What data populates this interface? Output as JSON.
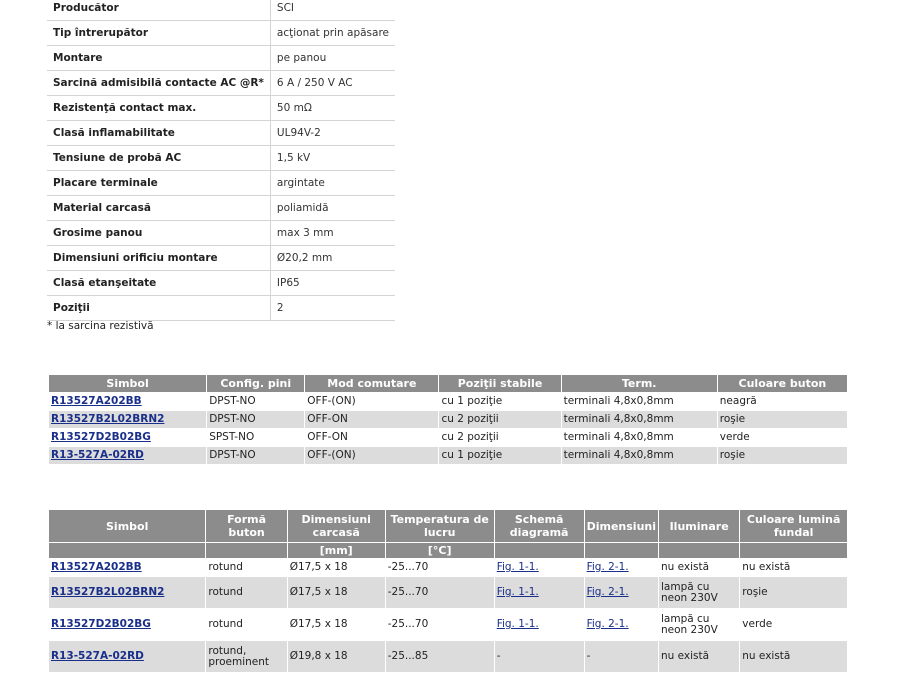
{
  "specs": [
    {
      "label": "Producător",
      "value": "SCI"
    },
    {
      "label": "Tip întrerupător",
      "value": "acţionat prin apăsare"
    },
    {
      "label": "Montare",
      "value": "pe panou"
    },
    {
      "label": "Sarcină admisibilă contacte AC @R*",
      "value": "6 A / 250 V AC"
    },
    {
      "label": "Rezistenţă contact max.",
      "value": "50 mΩ"
    },
    {
      "label": "Clasă inflamabilitate",
      "value": "UL94V-2"
    },
    {
      "label": "Tensiune de probă AC",
      "value": "1,5 kV"
    },
    {
      "label": "Placare terminale",
      "value": "argintate"
    },
    {
      "label": "Material carcasă",
      "value": "poliamidă"
    },
    {
      "label": "Grosime panou",
      "value": "max 3 mm"
    },
    {
      "label": "Dimensiuni orificiu montare",
      "value": "Ø20,2 mm"
    },
    {
      "label": "Clasă etanşeitate",
      "value": "IP65"
    },
    {
      "label": "Poziţii",
      "value": "2"
    }
  ],
  "footnote": "* la sarcina rezistivă",
  "table1": {
    "headers": [
      "Simbol",
      "Config. pini",
      "Mod comutare",
      "Poziţii stabile",
      "Term.",
      "Culoare buton"
    ],
    "rows": [
      [
        "R13527A202BB",
        "DPST-NO",
        "OFF-(ON)",
        "cu 1 poziţie",
        "terminali 4,8x0,8mm",
        "neagră"
      ],
      [
        "R13527B2L02BRN2",
        "DPST-NO",
        "OFF-ON",
        "cu 2 poziţii",
        "terminali 4,8x0,8mm",
        "roşie"
      ],
      [
        "R13527D2B02BG",
        "SPST-NO",
        "OFF-ON",
        "cu 2 poziţii",
        "terminali 4,8x0,8mm",
        "verde"
      ],
      [
        "R13-527A-02RD",
        "DPST-NO",
        "OFF-(ON)",
        "cu 1 poziţie",
        "terminali 4,8x0,8mm",
        "roşie"
      ]
    ]
  },
  "table2": {
    "headers": [
      "Simbol",
      "Formă buton",
      "Dimensiuni carcasă",
      "Temperatura de lucru",
      "Schemă diagramă",
      "Dimensiuni",
      "Iluminare",
      "Culoare lumină fundal"
    ],
    "units": [
      "",
      "",
      "[mm]",
      "[°C]",
      "",
      "",
      "",
      ""
    ],
    "rows": [
      [
        "R13527A202BB",
        "rotund",
        "Ø17,5 x 18",
        "-25...70",
        "Fig. 1-1.",
        "Fig. 2-1.",
        "nu există",
        "nu există"
      ],
      [
        "R13527B2L02BRN2",
        "rotund",
        "Ø17,5 x 18",
        "-25...70",
        "Fig. 1-1.",
        "Fig. 2-1.",
        "lampă cu neon 230V",
        "roşie"
      ],
      [
        "R13527D2B02BG",
        "rotund",
        "Ø17,5 x 18",
        "-25...70",
        "Fig. 1-1.",
        "Fig. 2-1.",
        "lampă cu neon 230V",
        "verde"
      ],
      [
        "R13-527A-02RD",
        "rotund, proeminent",
        "Ø19,8 x 18",
        "-25...85",
        "-",
        "-",
        "nu există",
        "nu există"
      ]
    ]
  }
}
